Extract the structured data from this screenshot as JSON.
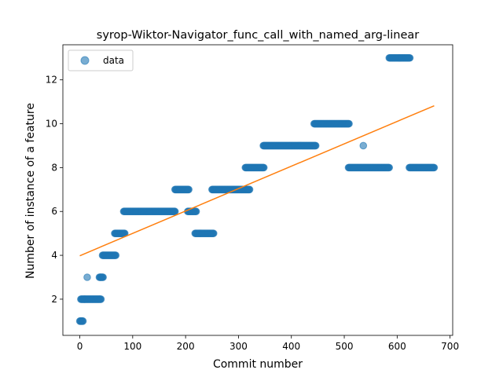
{
  "chart_data": {
    "type": "scatter",
    "title": "syrop-Wiktor-Navigator_func_call_with_named_arg-linear",
    "xlabel": "Commit number",
    "ylabel": "Number of instance of a feature",
    "xlim": [
      -32,
      705
    ],
    "ylim": [
      0.35,
      13.6
    ],
    "xticks": [
      0,
      100,
      200,
      300,
      400,
      500,
      600,
      700
    ],
    "yticks": [
      2,
      4,
      6,
      8,
      10,
      12
    ],
    "legend": {
      "position": "top-left",
      "entries": [
        "data"
      ]
    },
    "colors": {
      "points": "#1f77b4",
      "fit": "#ff7f0e"
    },
    "series": [
      {
        "name": "data",
        "kind": "points",
        "runs": [
          {
            "x_start": 0,
            "x_end": 6,
            "y": 1
          },
          {
            "x_start": 2,
            "x_end": 9,
            "y": 2
          },
          {
            "x_start": 14,
            "x_end": 14,
            "y": 3
          },
          {
            "x_start": 9,
            "x_end": 40,
            "y": 2
          },
          {
            "x_start": 37,
            "x_end": 44,
            "y": 3
          },
          {
            "x_start": 43,
            "x_end": 68,
            "y": 4
          },
          {
            "x_start": 66,
            "x_end": 85,
            "y": 5
          },
          {
            "x_start": 83,
            "x_end": 180,
            "y": 6
          },
          {
            "x_start": 180,
            "x_end": 206,
            "y": 7
          },
          {
            "x_start": 204,
            "x_end": 220,
            "y": 6
          },
          {
            "x_start": 218,
            "x_end": 253,
            "y": 5
          },
          {
            "x_start": 250,
            "x_end": 321,
            "y": 7
          },
          {
            "x_start": 313,
            "x_end": 348,
            "y": 8
          },
          {
            "x_start": 347,
            "x_end": 446,
            "y": 9
          },
          {
            "x_start": 443,
            "x_end": 509,
            "y": 10
          },
          {
            "x_start": 508,
            "x_end": 585,
            "y": 8
          },
          {
            "x_start": 536,
            "x_end": 536,
            "y": 9
          },
          {
            "x_start": 585,
            "x_end": 624,
            "y": 13
          },
          {
            "x_start": 623,
            "x_end": 670,
            "y": 8
          }
        ]
      },
      {
        "name": "",
        "kind": "line",
        "x": [
          0,
          670
        ],
        "y": [
          3.98,
          10.82
        ]
      }
    ]
  }
}
